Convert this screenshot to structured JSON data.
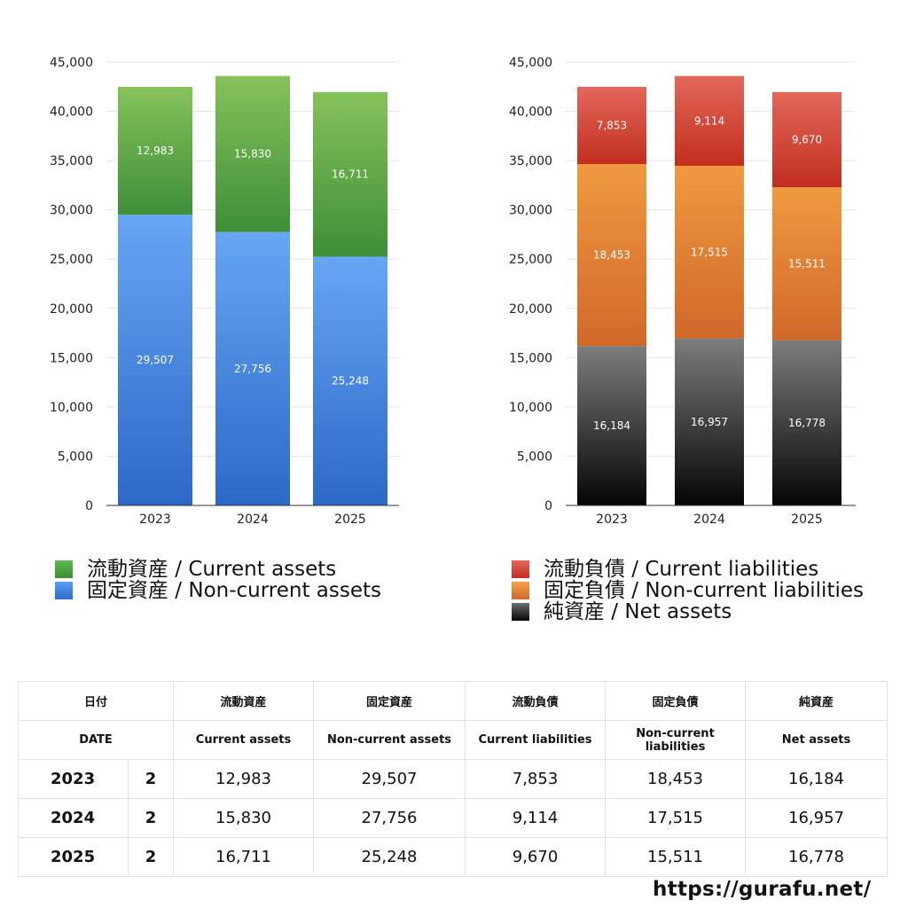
{
  "chart_data": [
    {
      "type": "bar",
      "stacked": true,
      "categories": [
        "2023",
        "2024",
        "2025"
      ],
      "ylim": [
        0,
        45000
      ],
      "yticks": [
        "0",
        "5,000",
        "10,000",
        "15,000",
        "20,000",
        "25,000",
        "30,000",
        "35,000",
        "40,000",
        "45,000"
      ],
      "grid": true,
      "series": [
        {
          "name": "固定資産 / Non-current assets",
          "values": [
            29507,
            27756,
            25248
          ],
          "labels": [
            "29,507",
            "27,756",
            "25,248"
          ],
          "color_top": "#66a6f4",
          "color_bottom": "#2d68c8"
        },
        {
          "name": "流動資産 / Current assets",
          "values": [
            12983,
            15830,
            16711
          ],
          "labels": [
            "12,983",
            "15,830",
            "16,711"
          ],
          "color_top": "#86c25a",
          "color_bottom": "#3e8f38"
        }
      ],
      "legend": [
        "流動資産 / Current assets",
        "固定資産 / Non-current assets"
      ],
      "legend_colors": [
        "#4faa44",
        "#3f7ed8"
      ]
    },
    {
      "type": "bar",
      "stacked": true,
      "categories": [
        "2023",
        "2024",
        "2025"
      ],
      "ylim": [
        0,
        45000
      ],
      "yticks": [
        "0",
        "5,000",
        "10,000",
        "15,000",
        "20,000",
        "25,000",
        "30,000",
        "35,000",
        "40,000",
        "45,000"
      ],
      "grid": true,
      "series": [
        {
          "name": "純資産 / Net assets",
          "values": [
            16184,
            16957,
            16778
          ],
          "labels": [
            "16,184",
            "16,957",
            "16,778"
          ],
          "color_top": "#7d7d7d",
          "color_bottom": "#050505"
        },
        {
          "name": "固定負債 / Non-current liabilities",
          "values": [
            18453,
            17515,
            15511
          ],
          "labels": [
            "18,453",
            "17,515",
            "15,511"
          ],
          "color_top": "#ef9a40",
          "color_bottom": "#d0682a"
        },
        {
          "name": "流動負債 / Current liabilities",
          "values": [
            7853,
            9114,
            9670
          ],
          "labels": [
            "7,853",
            "9,114",
            "9,670"
          ],
          "color_top": "#e2685a",
          "color_bottom": "#c22e1e"
        }
      ],
      "legend": [
        "流動負債 / Current liabilities",
        "固定負債 / Non-current liabilities",
        "純資産 / Net assets"
      ],
      "legend_colors": [
        "#d9443a",
        "#e8883a",
        "#333333"
      ]
    }
  ],
  "table": {
    "header_jp": [
      "日付",
      "流動資産",
      "固定資産",
      "流動負債",
      "固定負債",
      "純資産"
    ],
    "header_en": [
      "DATE",
      "Current assets",
      "Non-current assets",
      "Current liabilities",
      "Non-current liabilities",
      "Net assets"
    ],
    "rows": [
      {
        "year": "2023",
        "count": "2",
        "values": [
          "12,983",
          "29,507",
          "7,853",
          "18,453",
          "16,184"
        ]
      },
      {
        "year": "2024",
        "count": "2",
        "values": [
          "15,830",
          "27,756",
          "9,114",
          "17,515",
          "16,957"
        ]
      },
      {
        "year": "2025",
        "count": "2",
        "values": [
          "16,711",
          "25,248",
          "9,670",
          "15,511",
          "16,778"
        ]
      }
    ]
  },
  "footer_url": "https://gurafu.net/"
}
